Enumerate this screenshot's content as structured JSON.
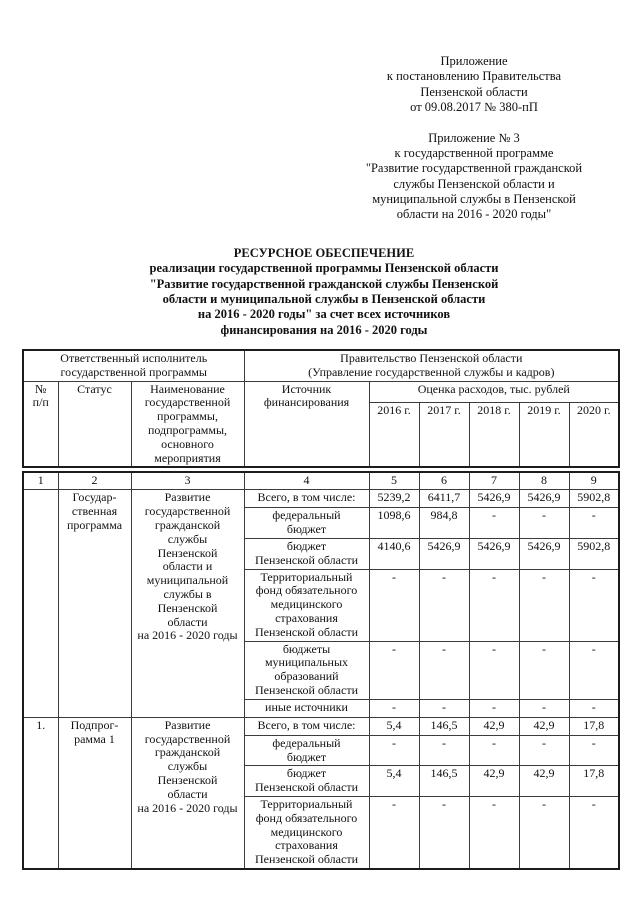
{
  "page": {
    "appendix_note": "Приложение\nк постановлению Правительства\nПензенской области\nот 09.08.2017 № 380-пП",
    "appendix3_note": "Приложение № 3\nк государственной программе\n\"Развитие государственной гражданской\nслужбы Пензенской области и\nмуниципальной службы в Пензенской\nобласти на 2016 - 2020 годы\"",
    "title": "РЕСУРСНОЕ ОБЕСПЕЧЕНИЕ\nреализации государственной программы Пензенской области\n\"Развитие государственной гражданской службы Пензенской\nобласти и муниципальной службы в Пензенской области\nна 2016 - 2020 годы\" за счет всех источников\nфинансирования на 2016 - 2020 годы"
  },
  "table": {
    "responsible_label": "Ответственный исполнитель\nгосударственной программы",
    "responsible_value": "Правительство Пензенской области\n(Управление государственной службы и кадров)",
    "col_num": "№\nп/п",
    "col_status": "Статус",
    "col_name": "Наименование\nгосударственной\nпрограммы,\nподпрограммы,\nосновного\nмероприятия",
    "col_source": "Источник\nфинансирования",
    "col_costs": "Оценка расходов, тыс. рублей",
    "years": [
      "2016 г.",
      "2017 г.",
      "2018 г.",
      "2019 г.",
      "2020 г."
    ],
    "col_numbers": [
      "1",
      "2",
      "3",
      "4",
      "5",
      "6",
      "7",
      "8",
      "9"
    ],
    "blocks": [
      {
        "num": "",
        "status": "Государ-\nственная\nпрограмма",
        "name": "Развитие\nгосударственной\nгражданской\nслужбы\nПензенской\nобласти и\nмуниципальной\nслужбы в\nПензенской\nобласти\nна 2016 - 2020 годы",
        "rows": [
          {
            "source": "Всего, в том числе:",
            "values": [
              "5239,2",
              "6411,7",
              "5426,9",
              "5426,9",
              "5902,8"
            ]
          },
          {
            "source": "федеральный\nбюджет",
            "values": [
              "1098,6",
              "984,8",
              "-",
              "-",
              "-"
            ]
          },
          {
            "source": "бюджет\nПензенской области",
            "values": [
              "4140,6",
              "5426,9",
              "5426,9",
              "5426,9",
              "5902,8"
            ]
          },
          {
            "source": "Территориальный\nфонд обязательного\nмедицинского\nстрахования\nПензенской области",
            "values": [
              "-",
              "-",
              "-",
              "-",
              "-"
            ]
          },
          {
            "source": "бюджеты\nмуниципальных\nобразований\nПензенской области",
            "values": [
              "-",
              "-",
              "-",
              "-",
              "-"
            ]
          },
          {
            "source": "иные источники",
            "values": [
              "-",
              "-",
              "-",
              "-",
              "-"
            ]
          }
        ]
      },
      {
        "num": "1.",
        "status": "Подпрог-\nрамма 1",
        "name": "Развитие\nгосударственной\nгражданской\nслужбы\nПензенской\nобласти\nна 2016 - 2020 годы",
        "rows": [
          {
            "source": "Всего, в том числе:",
            "values": [
              "5,4",
              "146,5",
              "42,9",
              "42,9",
              "17,8"
            ]
          },
          {
            "source": "федеральный\nбюджет",
            "values": [
              "-",
              "-",
              "-",
              "-",
              "-"
            ]
          },
          {
            "source": "бюджет\nПензенской области",
            "values": [
              "5,4",
              "146,5",
              "42,9",
              "42,9",
              "17,8"
            ]
          },
          {
            "source": "Территориальный\nфонд обязательного\nмедицинского\nстрахования\nПензенской области",
            "values": [
              "-",
              "-",
              "-",
              "-",
              "-"
            ]
          }
        ]
      }
    ]
  }
}
